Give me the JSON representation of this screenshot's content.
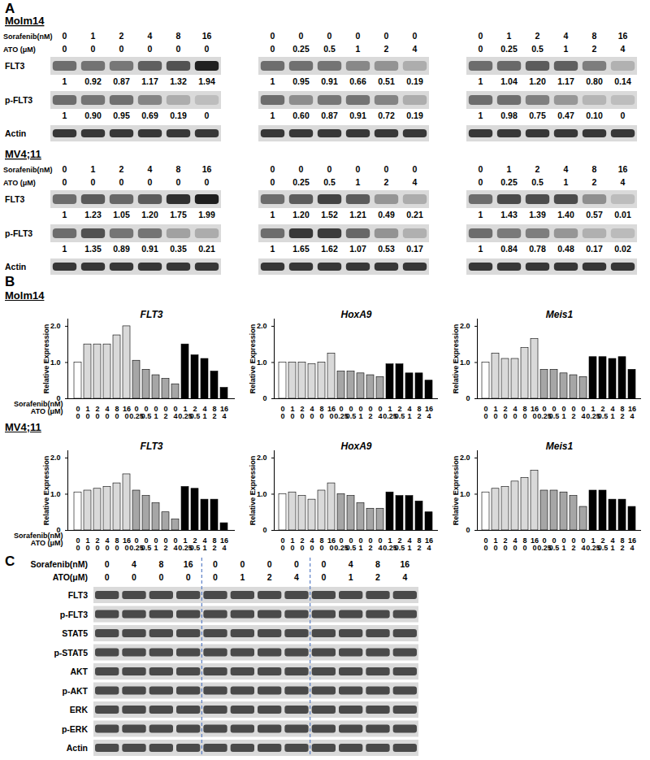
{
  "panel_A": {
    "label": "A",
    "row_labels": {
      "sorafenib": "Sorafenib(nM)",
      "ato": "ATO (μM)"
    },
    "cell_lines": [
      {
        "name": "Molm14",
        "blots": [
          {
            "sorafenib": [
              0,
              1,
              2,
              4,
              8,
              16
            ],
            "ato": [
              0,
              0,
              0,
              0,
              0,
              0
            ],
            "rows": [
              {
                "label": "FLT3",
                "quant": [
                  "1",
                  "0.92",
                  "0.87",
                  "1.17",
                  "1.32",
                  "1.94"
                ]
              },
              {
                "label": "p-FLT3",
                "quant": [
                  "1",
                  "0.90",
                  "0.95",
                  "0.69",
                  "0.19",
                  "0"
                ]
              },
              {
                "label": "Actin"
              }
            ]
          },
          {
            "sorafenib": [
              0,
              0,
              0,
              0,
              0,
              0
            ],
            "ato": [
              0,
              0.25,
              0.5,
              1,
              2,
              4
            ],
            "rows": [
              {
                "label": "FLT3",
                "quant": [
                  "1",
                  "0.95",
                  "0.91",
                  "0.66",
                  "0.51",
                  "0.19"
                ]
              },
              {
                "label": "p-FLT3",
                "quant": [
                  "1",
                  "0.60",
                  "0.87",
                  "0.91",
                  "0.72",
                  "0.19"
                ]
              },
              {
                "label": "Actin"
              }
            ]
          },
          {
            "sorafenib": [
              0,
              1,
              2,
              4,
              8,
              16
            ],
            "ato": [
              0,
              0.25,
              0.5,
              1,
              2,
              4
            ],
            "rows": [
              {
                "label": "FLT3",
                "quant": [
                  "1",
                  "1.04",
                  "1.20",
                  "1.17",
                  "0.80",
                  "0.14"
                ]
              },
              {
                "label": "p-FLT3",
                "quant": [
                  "1",
                  "0.98",
                  "0.75",
                  "0.47",
                  "0.10",
                  "0"
                ]
              },
              {
                "label": "Actin"
              }
            ]
          }
        ]
      },
      {
        "name": "MV4;11",
        "blots": [
          {
            "sorafenib": [
              0,
              1,
              2,
              4,
              8,
              16
            ],
            "ato": [
              0,
              0,
              0,
              0,
              0,
              0
            ],
            "rows": [
              {
                "label": "FLT3",
                "quant": [
                  "1",
                  "1.23",
                  "1.05",
                  "1.20",
                  "1.75",
                  "1.99"
                ]
              },
              {
                "label": "p-FLT3",
                "quant": [
                  "1",
                  "1.35",
                  "0.89",
                  "0.91",
                  "0.35",
                  "0.21"
                ]
              },
              {
                "label": "Actin"
              }
            ]
          },
          {
            "sorafenib": [
              0,
              0,
              0,
              0,
              0,
              0
            ],
            "ato": [
              0,
              0.25,
              0.5,
              1,
              2,
              4
            ],
            "rows": [
              {
                "label": "FLT3",
                "quant": [
                  "1",
                  "1.20",
                  "1.52",
                  "1.21",
                  "0.49",
                  "0.21"
                ]
              },
              {
                "label": "p-FLT3",
                "quant": [
                  "1",
                  "1.65",
                  "1.62",
                  "1.07",
                  "0.53",
                  "0.17"
                ]
              },
              {
                "label": "Actin"
              }
            ]
          },
          {
            "sorafenib": [
              0,
              1,
              2,
              4,
              8,
              16
            ],
            "ato": [
              0,
              0.25,
              0.5,
              1,
              2,
              4
            ],
            "rows": [
              {
                "label": "FLT3",
                "quant": [
                  "1",
                  "1.43",
                  "1.39",
                  "1.40",
                  "0.57",
                  "0.01"
                ]
              },
              {
                "label": "p-FLT3",
                "quant": [
                  "1",
                  "0.84",
                  "0.78",
                  "0.48",
                  "0.17",
                  "0.02"
                ]
              },
              {
                "label": "Actin"
              }
            ]
          }
        ]
      }
    ]
  },
  "panel_B": {
    "label": "B",
    "cell_lines": [
      "Molm14",
      "MV4;11"
    ]
  },
  "chart_data": [
    {
      "type": "bar",
      "title": "FLT3",
      "ylabel": "Relative Expression",
      "categories": [
        "0\n0",
        "1\n0",
        "2\n0",
        "4\n0",
        "8\n0",
        "16\n0",
        "0\n0.25",
        "0\n0.5",
        "0\n1",
        "0\n2",
        "0\n4",
        "1\n0.25",
        "2\n0.5",
        "4\n1",
        "8\n2",
        "16\n4"
      ],
      "values": [
        1.0,
        1.5,
        1.5,
        1.5,
        1.75,
        2.0,
        1.05,
        0.8,
        0.65,
        0.55,
        0.4,
        1.5,
        1.2,
        1.1,
        0.75,
        0.3
      ],
      "colors": [
        "#ffffff",
        "#d9d9d9",
        "#d9d9d9",
        "#d9d9d9",
        "#d9d9d9",
        "#d9d9d9",
        "#a6a6a6",
        "#a6a6a6",
        "#a6a6a6",
        "#a6a6a6",
        "#a6a6a6",
        "#000000",
        "#000000",
        "#000000",
        "#000000",
        "#000000"
      ],
      "ylim": [
        0,
        2.2
      ],
      "yticks": [
        0,
        {
          "value": 1,
          "label": "1.0"
        },
        {
          "value": 2,
          "label": "2.0"
        }
      ],
      "annotations": [
        "Sorafenib(nM)",
        "ATO (μM)"
      ]
    },
    {
      "type": "bar",
      "title": "HoxA9",
      "ylabel": "Relative Expression",
      "categories": [
        "0\n0",
        "1\n0",
        "2\n0",
        "4\n0",
        "8\n0",
        "16\n0",
        "0\n0.25",
        "0\n0.5",
        "0\n1",
        "0\n2",
        "0\n4",
        "1\n0.25",
        "2\n0.5",
        "4\n1",
        "8\n2",
        "16\n4"
      ],
      "values": [
        1.0,
        1.0,
        1.0,
        0.95,
        1.0,
        1.25,
        0.75,
        0.75,
        0.7,
        0.65,
        0.6,
        0.95,
        0.95,
        0.7,
        0.7,
        0.5
      ],
      "colors": [
        "#ffffff",
        "#d9d9d9",
        "#d9d9d9",
        "#d9d9d9",
        "#d9d9d9",
        "#d9d9d9",
        "#a6a6a6",
        "#a6a6a6",
        "#a6a6a6",
        "#a6a6a6",
        "#a6a6a6",
        "#000000",
        "#000000",
        "#000000",
        "#000000",
        "#000000"
      ],
      "ylim": [
        0,
        2.2
      ],
      "yticks": [
        0,
        {
          "value": 1,
          "label": "1.0"
        },
        {
          "value": 2,
          "label": "2.0"
        }
      ]
    },
    {
      "type": "bar",
      "title": "Meis1",
      "ylabel": "Relative Expression",
      "categories": [
        "0\n0",
        "1\n0",
        "2\n0",
        "4\n0",
        "8\n0",
        "16\n0",
        "0\n0.25",
        "0\n0.5",
        "0\n1",
        "0\n2",
        "0\n4",
        "1\n0.25",
        "2\n0.5",
        "4\n1",
        "8\n2",
        "16\n4"
      ],
      "values": [
        1.0,
        1.25,
        1.1,
        1.1,
        1.4,
        1.65,
        0.8,
        0.8,
        0.7,
        0.65,
        0.6,
        1.15,
        1.15,
        1.1,
        1.15,
        0.8
      ],
      "colors": [
        "#ffffff",
        "#d9d9d9",
        "#d9d9d9",
        "#d9d9d9",
        "#d9d9d9",
        "#d9d9d9",
        "#a6a6a6",
        "#a6a6a6",
        "#a6a6a6",
        "#a6a6a6",
        "#a6a6a6",
        "#000000",
        "#000000",
        "#000000",
        "#000000",
        "#000000"
      ],
      "ylim": [
        0,
        2.2
      ],
      "yticks": [
        0,
        {
          "value": 1,
          "label": "1.0"
        },
        {
          "value": 2,
          "label": "2.0"
        }
      ]
    },
    {
      "type": "bar",
      "title": "FLT3",
      "ylabel": "Relative Expression",
      "categories": [
        "0\n0",
        "1\n0",
        "2\n0",
        "4\n0",
        "8\n0",
        "16\n0",
        "0\n0.25",
        "0\n0.5",
        "0\n1",
        "0\n2",
        "0\n4",
        "1\n0.25",
        "2\n0.5",
        "4\n1",
        "8\n2",
        "16\n4"
      ],
      "values": [
        1.05,
        1.1,
        1.15,
        1.2,
        1.3,
        1.55,
        1.1,
        0.95,
        0.75,
        0.5,
        0.3,
        1.2,
        1.15,
        0.85,
        0.85,
        0.2
      ],
      "colors": [
        "#ffffff",
        "#d9d9d9",
        "#d9d9d9",
        "#d9d9d9",
        "#d9d9d9",
        "#d9d9d9",
        "#a6a6a6",
        "#a6a6a6",
        "#a6a6a6",
        "#a6a6a6",
        "#a6a6a6",
        "#000000",
        "#000000",
        "#000000",
        "#000000",
        "#000000"
      ],
      "ylim": [
        0,
        2.2
      ],
      "yticks": [
        0,
        {
          "value": 1,
          "label": "1.0"
        },
        {
          "value": 2,
          "label": "2.0"
        }
      ],
      "annotations": [
        "Sorafenib(nM)",
        "ATO (μM)"
      ]
    },
    {
      "type": "bar",
      "title": "HoxA9",
      "ylabel": "Relative Expression",
      "categories": [
        "0\n0",
        "1\n0",
        "2\n0",
        "4\n0",
        "8\n0",
        "16\n0",
        "0\n0.25",
        "0\n0.5",
        "0\n1",
        "0\n2",
        "0\n4",
        "1\n0.25",
        "2\n0.5",
        "4\n1",
        "8\n2",
        "16\n4"
      ],
      "values": [
        1.0,
        1.05,
        0.95,
        0.85,
        1.1,
        1.3,
        1.0,
        0.95,
        0.75,
        0.6,
        0.6,
        1.05,
        0.95,
        0.95,
        0.8,
        0.5
      ],
      "colors": [
        "#ffffff",
        "#d9d9d9",
        "#d9d9d9",
        "#d9d9d9",
        "#d9d9d9",
        "#d9d9d9",
        "#a6a6a6",
        "#a6a6a6",
        "#a6a6a6",
        "#a6a6a6",
        "#a6a6a6",
        "#000000",
        "#000000",
        "#000000",
        "#000000",
        "#000000"
      ],
      "ylim": [
        0,
        2.2
      ],
      "yticks": [
        0,
        {
          "value": 1,
          "label": "1.0"
        },
        {
          "value": 2,
          "label": "2.0"
        }
      ]
    },
    {
      "type": "bar",
      "title": "Meis1",
      "ylabel": "Relative Expression",
      "categories": [
        "0\n0",
        "1\n0",
        "2\n0",
        "4\n0",
        "8\n0",
        "16\n0",
        "0\n0.25",
        "0\n0.5",
        "0\n1",
        "0\n2",
        "0\n4",
        "1\n0.25",
        "2\n0.5",
        "4\n1",
        "8\n2",
        "16\n4"
      ],
      "values": [
        1.05,
        1.15,
        1.2,
        1.35,
        1.45,
        1.65,
        1.1,
        1.1,
        1.05,
        0.95,
        0.65,
        1.1,
        1.1,
        0.85,
        0.85,
        0.65
      ],
      "colors": [
        "#ffffff",
        "#d9d9d9",
        "#d9d9d9",
        "#d9d9d9",
        "#d9d9d9",
        "#d9d9d9",
        "#a6a6a6",
        "#a6a6a6",
        "#a6a6a6",
        "#a6a6a6",
        "#a6a6a6",
        "#000000",
        "#000000",
        "#000000",
        "#000000",
        "#000000"
      ],
      "ylim": [
        0,
        2.2
      ],
      "yticks": [
        0,
        {
          "value": 1,
          "label": "1.0"
        },
        {
          "value": 2,
          "label": "2.0"
        }
      ]
    }
  ],
  "panel_C": {
    "label": "C",
    "row_labels": {
      "sorafenib": "Sorafenib(nM)",
      "ato": "ATO(μM)"
    },
    "sorafenib": [
      0,
      4,
      8,
      16,
      0,
      0,
      0,
      0,
      0,
      4,
      8,
      16
    ],
    "ato": [
      0,
      0,
      0,
      0,
      0,
      1,
      2,
      4,
      0,
      1,
      2,
      4
    ],
    "rows": [
      "FLT3",
      "p-FLT3",
      "STAT5",
      "p-STAT5",
      "AKT",
      "p-AKT",
      "ERK",
      "p-ERK",
      "Actin"
    ]
  }
}
